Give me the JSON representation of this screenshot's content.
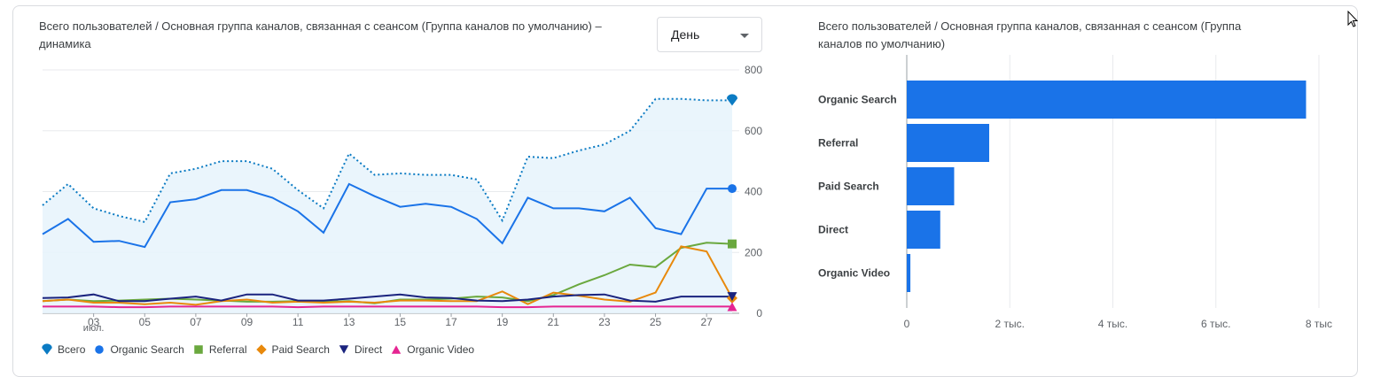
{
  "line_panel": {
    "title": "Всего пользователей / Основная группа каналов, связанная с сеансом (Группа каналов по умолчанию) – динамика",
    "granularity": {
      "selected": "День"
    }
  },
  "bar_panel": {
    "title": "Всего пользователей / Основная группа каналов, связанная с сеансом (Группа каналов по умолчанию)"
  },
  "icons": {
    "dropdown": "chevron-down-icon",
    "cursor": "mouse-pointer-icon"
  },
  "colors": {
    "total": "#0b7bc3",
    "organic_search": "#1a73e8",
    "referral": "#6aa83e",
    "paid_search": "#e8890c",
    "direct": "#1a237e",
    "organic_video": "#e52592",
    "bar": "#1a73e8"
  },
  "chart_data": [
    {
      "type": "line",
      "x": [
        "01",
        "02",
        "03",
        "04",
        "05",
        "06",
        "07",
        "08",
        "09",
        "10",
        "11",
        "12",
        "13",
        "14",
        "15",
        "16",
        "17",
        "18",
        "19",
        "20",
        "21",
        "22",
        "23",
        "24",
        "25",
        "26",
        "27",
        "28"
      ],
      "x_tick_labels": [
        "03",
        "05",
        "07",
        "09",
        "11",
        "13",
        "15",
        "17",
        "19",
        "21",
        "23",
        "25",
        "27"
      ],
      "x_tick_positions": [
        "03",
        "05",
        "07",
        "09",
        "11",
        "13",
        "15",
        "17",
        "19",
        "21",
        "23",
        "25",
        "27"
      ],
      "month_label": "июл.",
      "ylim": [
        0,
        800
      ],
      "yticks": [
        0,
        200,
        400,
        600,
        800
      ],
      "legend_position": "bottom",
      "series": [
        {
          "name": "Всего",
          "color": "#0b7bc3",
          "style": "dotted-area",
          "values": [
            355,
            425,
            345,
            320,
            300,
            460,
            475,
            500,
            500,
            475,
            405,
            345,
            525,
            455,
            460,
            455,
            455,
            440,
            305,
            515,
            510,
            535,
            555,
            600,
            705,
            705,
            700,
            700
          ]
        },
        {
          "name": "Organic Search",
          "color": "#1a73e8",
          "style": "solid",
          "values": [
            260,
            310,
            235,
            238,
            218,
            365,
            375,
            405,
            405,
            380,
            335,
            265,
            425,
            385,
            350,
            360,
            350,
            310,
            230,
            380,
            345,
            345,
            335,
            380,
            280,
            260,
            410,
            410
          ]
        },
        {
          "name": "Referral",
          "color": "#6aa83e",
          "style": "solid",
          "values": [
            40,
            45,
            40,
            42,
            45,
            48,
            45,
            42,
            38,
            38,
            40,
            38,
            40,
            33,
            45,
            45,
            48,
            55,
            52,
            40,
            60,
            95,
            125,
            160,
            152,
            215,
            232,
            228
          ]
        },
        {
          "name": "Paid Search",
          "color": "#e8890c",
          "style": "solid",
          "values": [
            40,
            45,
            35,
            35,
            30,
            35,
            28,
            40,
            45,
            35,
            38,
            35,
            38,
            35,
            42,
            42,
            40,
            40,
            72,
            30,
            68,
            58,
            45,
            38,
            68,
            220,
            203,
            50
          ]
        },
        {
          "name": "Direct",
          "color": "#1a237e",
          "style": "solid",
          "values": [
            50,
            52,
            62,
            40,
            40,
            48,
            55,
            42,
            62,
            62,
            42,
            42,
            48,
            55,
            62,
            52,
            50,
            42,
            40,
            45,
            55,
            60,
            62,
            42,
            38,
            55,
            55,
            55
          ]
        },
        {
          "name": "Organic Video",
          "color": "#e52592",
          "style": "solid",
          "values": [
            22,
            22,
            22,
            20,
            20,
            22,
            22,
            22,
            22,
            22,
            20,
            22,
            22,
            22,
            22,
            22,
            22,
            22,
            20,
            20,
            22,
            22,
            22,
            22,
            22,
            22,
            22,
            22
          ]
        }
      ]
    },
    {
      "type": "bar",
      "orientation": "horizontal",
      "categories": [
        "Organic Search",
        "Referral",
        "Paid Search",
        "Direct",
        "Organic Video"
      ],
      "values": [
        7750,
        1600,
        920,
        650,
        70
      ],
      "xlim": [
        0,
        8000
      ],
      "xticks": [
        0,
        2000,
        4000,
        6000,
        8000
      ],
      "xtick_labels": [
        "0",
        "2 тыс.",
        "4 тыс.",
        "6 тыс.",
        "8 тыс"
      ]
    }
  ]
}
